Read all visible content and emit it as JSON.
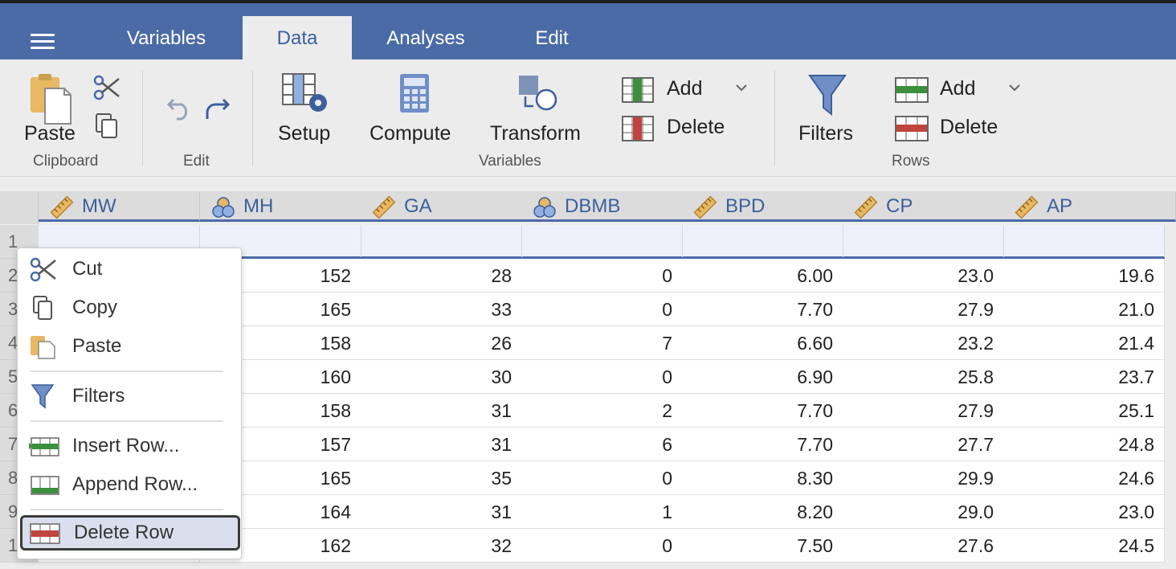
{
  "tabs": [
    "Variables",
    "Data",
    "Analyses",
    "Edit"
  ],
  "active_tab": "Data",
  "ribbon": {
    "clipboard": {
      "paste": "Paste",
      "group": "Clipboard"
    },
    "edit": {
      "group": "Edit"
    },
    "variables": {
      "setup": "Setup",
      "compute": "Compute",
      "transform": "Transform",
      "add": "Add",
      "delete": "Delete",
      "group": "Variables"
    },
    "rows": {
      "filters": "Filters",
      "add": "Add",
      "delete": "Delete",
      "group": "Rows"
    }
  },
  "columns": [
    {
      "name": "MW",
      "type": "ruler-icon"
    },
    {
      "name": "MH",
      "type": "nominal-circles-icon"
    },
    {
      "name": "GA",
      "type": "ruler-icon"
    },
    {
      "name": "DBMB",
      "type": "nominal-circles-icon"
    },
    {
      "name": "BPD",
      "type": "ruler-icon"
    },
    {
      "name": "CP",
      "type": "ruler-icon"
    },
    {
      "name": "AP",
      "type": "ruler-icon"
    }
  ],
  "row_numbers": [
    "1",
    "2",
    "3",
    "4",
    "5",
    "6",
    "7",
    "8",
    "9",
    "1"
  ],
  "rows": [
    [
      "",
      "152",
      "28",
      "0",
      "6.00",
      "23.0",
      "19.6"
    ],
    [
      "",
      "165",
      "33",
      "0",
      "7.70",
      "27.9",
      "21.0"
    ],
    [
      "",
      "158",
      "26",
      "7",
      "6.60",
      "23.2",
      "21.4"
    ],
    [
      "",
      "160",
      "30",
      "0",
      "6.90",
      "25.8",
      "23.7"
    ],
    [
      "",
      "158",
      "31",
      "2",
      "7.70",
      "27.9",
      "25.1"
    ],
    [
      "",
      "157",
      "31",
      "6",
      "7.70",
      "27.7",
      "24.8"
    ],
    [
      "",
      "165",
      "35",
      "0",
      "8.30",
      "29.9",
      "24.6"
    ],
    [
      "",
      "164",
      "31",
      "1",
      "8.20",
      "29.0",
      "23.0"
    ],
    [
      "",
      "162",
      "32",
      "0",
      "7.50",
      "27.6",
      "24.5"
    ]
  ],
  "context_menu": {
    "cut": "Cut",
    "copy": "Copy",
    "paste": "Paste",
    "filters": "Filters",
    "insert_row": "Insert Row...",
    "append_row": "Append Row...",
    "delete_row": "Delete Row"
  },
  "colors": {
    "accent": "#4a6ba6",
    "add_green": "#3c8f3c",
    "delete_red": "#c0443f"
  }
}
